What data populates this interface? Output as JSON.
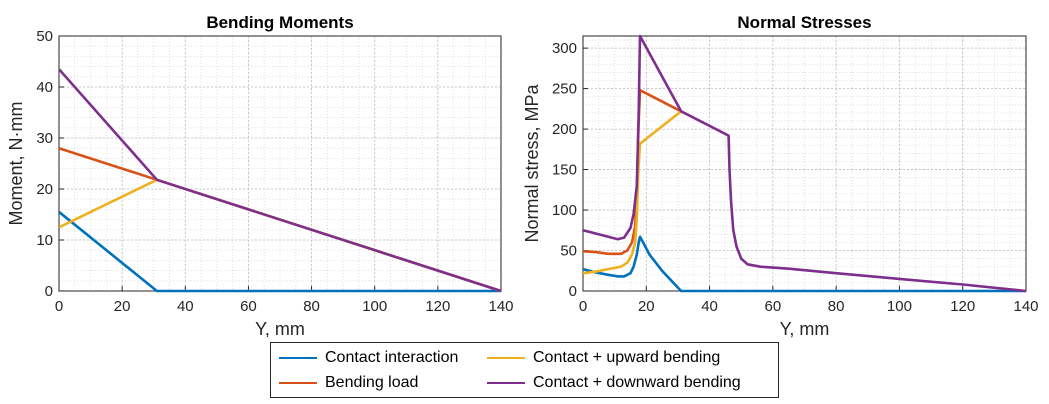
{
  "chart_data": [
    {
      "type": "line",
      "title": "Bending Moments",
      "xlabel": "Y, mm",
      "ylabel": "Moment, N·mm",
      "xlim": [
        0,
        140
      ],
      "ylim": [
        0,
        50
      ],
      "xticks": [
        "0",
        "20",
        "40",
        "60",
        "80",
        "100",
        "120",
        "140"
      ],
      "yticks": [
        "0",
        "10",
        "20",
        "30",
        "40",
        "50"
      ],
      "grid": "minor-dotted",
      "series": [
        {
          "name": "Contact interaction",
          "color": "#0072BD",
          "x": [
            0,
            31,
            140
          ],
          "y": [
            15.5,
            0,
            0
          ]
        },
        {
          "name": "Bending load",
          "color": "#D95319",
          "x": [
            0,
            31,
            140
          ],
          "y": [
            28,
            21.8,
            0
          ]
        },
        {
          "name": "Contact + upward bending",
          "color": "#EDB120",
          "x": [
            0,
            31,
            140
          ],
          "y": [
            12.5,
            21.8,
            0
          ]
        },
        {
          "name": "Contact + downward bending",
          "color": "#7E2F8E",
          "x": [
            0,
            31,
            140
          ],
          "y": [
            43.5,
            21.8,
            0
          ]
        }
      ]
    },
    {
      "type": "line",
      "title": "Normal Stresses",
      "xlabel": "Y, mm",
      "ylabel": "Normal stress, MPa",
      "xlim": [
        0,
        140
      ],
      "ylim": [
        0,
        315
      ],
      "xticks": [
        "0",
        "20",
        "40",
        "60",
        "80",
        "100",
        "120",
        "140"
      ],
      "yticks": [
        "0",
        "50",
        "100",
        "150",
        "200",
        "250",
        "300"
      ],
      "grid": "minor-dotted",
      "series": [
        {
          "name": "Contact interaction",
          "color": "#0072BD",
          "x": [
            0,
            4,
            8,
            11,
            13,
            15,
            16,
            17,
            17.6,
            18,
            19,
            21,
            25,
            31,
            140
          ],
          "y": [
            27,
            23,
            20,
            18,
            18,
            22,
            30,
            45,
            60,
            67,
            60,
            45,
            25,
            0,
            0
          ]
        },
        {
          "name": "Bending load",
          "color": "#D95319",
          "x": [
            0,
            4,
            8,
            12,
            14,
            15.5,
            16.5,
            17,
            17.5,
            18,
            31
          ],
          "y": [
            49,
            48,
            46,
            46,
            50,
            60,
            80,
            120,
            200,
            248,
            222
          ]
        },
        {
          "name": "Contact + upward bending",
          "color": "#EDB120",
          "x": [
            0,
            4,
            8,
            12,
            14,
            15.5,
            16.5,
            17,
            17.5,
            18,
            31
          ],
          "y": [
            22,
            24,
            27,
            30,
            35,
            45,
            60,
            90,
            150,
            182,
            222
          ]
        },
        {
          "name": "Contact + downward bending",
          "color": "#7E2F8E",
          "x": [
            0,
            4,
            8,
            11,
            13,
            15,
            16,
            17,
            17.6,
            18,
            31,
            46,
            46.3,
            46.8,
            47.5,
            48.5,
            50,
            52,
            56,
            65,
            80,
            100,
            120,
            140
          ],
          "y": [
            75,
            71,
            67,
            64,
            66,
            78,
            95,
            130,
            220,
            315,
            222,
            192,
            150,
            110,
            75,
            55,
            40,
            33,
            30,
            27.5,
            22,
            15,
            8,
            0
          ]
        }
      ]
    }
  ],
  "legend": {
    "items": [
      {
        "label": "Contact interaction",
        "color": "#0072BD"
      },
      {
        "label": "Contact + upward bending",
        "color": "#EDB120"
      },
      {
        "label": "Bending load",
        "color": "#D95319"
      },
      {
        "label": "Contact + downward bending",
        "color": "#7E2F8E"
      }
    ]
  }
}
